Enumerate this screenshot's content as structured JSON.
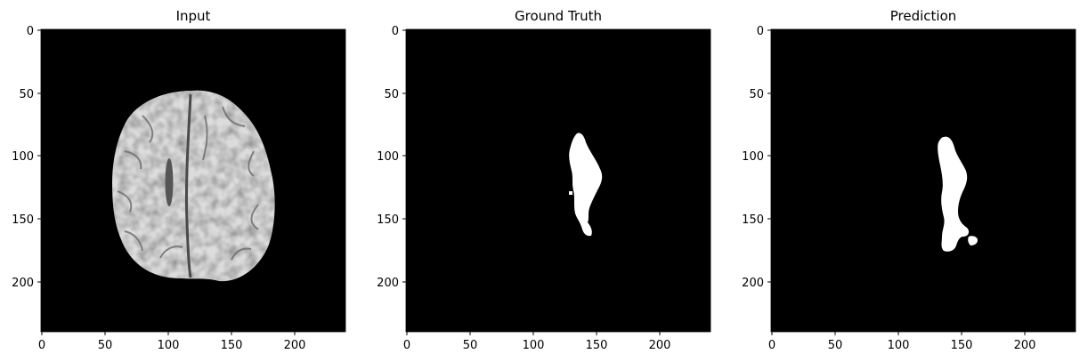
{
  "panels": [
    {
      "id": "input",
      "title": "Input",
      "image_kind": "brain-mri-slice",
      "x_ticks": [
        "0",
        "50",
        "100",
        "150",
        "200"
      ],
      "y_ticks": [
        "0",
        "50",
        "100",
        "150",
        "200"
      ]
    },
    {
      "id": "ground-truth",
      "title": "Ground Truth",
      "image_kind": "binary-lesion-mask",
      "x_ticks": [
        "0",
        "50",
        "100",
        "150",
        "200"
      ],
      "y_ticks": [
        "0",
        "50",
        "100",
        "150",
        "200"
      ]
    },
    {
      "id": "prediction",
      "title": "Prediction",
      "image_kind": "binary-lesion-mask",
      "x_ticks": [
        "0",
        "50",
        "100",
        "150",
        "200"
      ],
      "y_ticks": [
        "0",
        "50",
        "100",
        "150",
        "200"
      ]
    }
  ],
  "colors": {
    "background": "#000000",
    "mask": "#ffffff",
    "tissue": "#e2e2e2",
    "axis": "#000000"
  }
}
